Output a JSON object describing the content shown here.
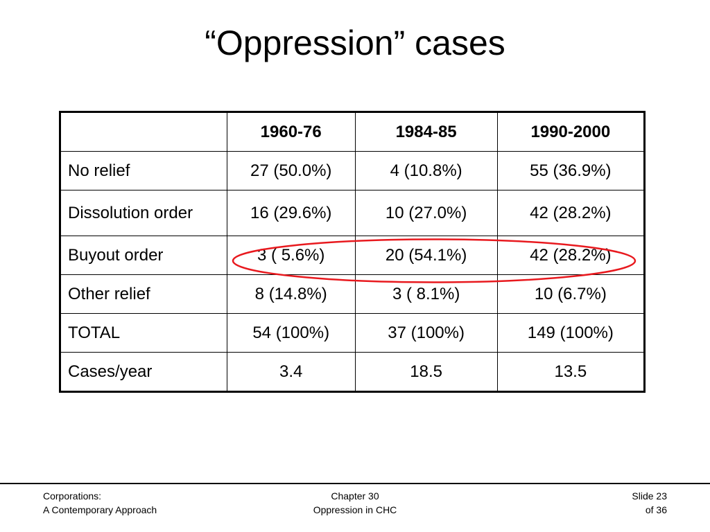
{
  "slide": {
    "title": "“Oppression” cases"
  },
  "table": {
    "headers": [
      "",
      "1960-76",
      "1984-85",
      "1990-2000"
    ],
    "rows": [
      {
        "label": "No relief",
        "values": [
          "27 (50.0%)",
          "4 (10.8%)",
          "55 (36.9%)"
        ]
      },
      {
        "label": "Dissolution order",
        "values": [
          "16 (29.6%)",
          "10 (27.0%)",
          "42 (28.2%)"
        ]
      },
      {
        "label": "Buyout order",
        "values": [
          "3 ( 5.6%)",
          "20 (54.1%)",
          "42 (28.2%)"
        ]
      },
      {
        "label": "Other relief",
        "values": [
          "8 (14.8%)",
          "3 ( 8.1%)",
          "10 (6.7%)"
        ]
      },
      {
        "label": "TOTAL",
        "values": [
          "54 (100%)",
          "37 (100%)",
          "149 (100%)"
        ]
      },
      {
        "label": "Cases/year",
        "values": [
          "3.4",
          "18.5",
          "13.5"
        ]
      }
    ],
    "highlight_color": "#e8191e"
  },
  "footer": {
    "left_line1": "Corporations:",
    "left_line2": "A Contemporary Approach",
    "center_line1": "Chapter 30",
    "center_line2": "Oppression in CHC",
    "right_line1": "Slide 23",
    "right_line2": "of 36"
  }
}
